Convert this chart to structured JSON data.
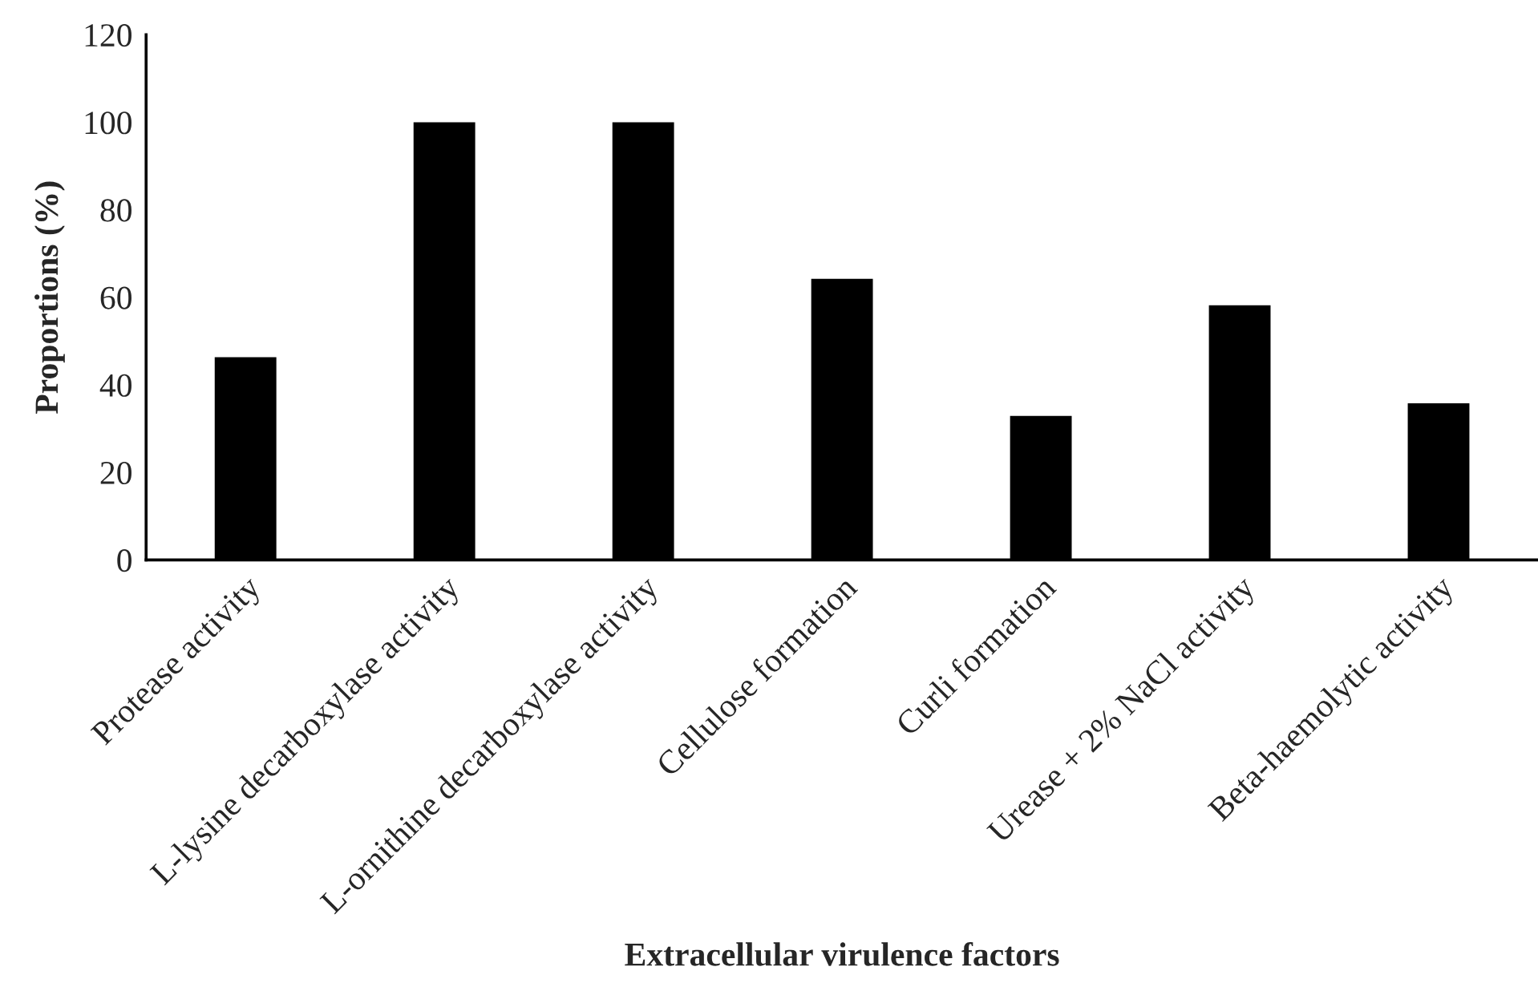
{
  "chart_data": {
    "type": "bar",
    "xlabel": "Extracellular virulence factors",
    "ylabel": "Proportions (%)",
    "categories": [
      "Protease activity",
      "L-lysine decarboxylase activity",
      "L-ornithine decarboxylase activity",
      "Cellulose formation",
      "Curli formation",
      "Urease + 2% NaCl activity",
      "Beta-haemolytic activity"
    ],
    "values": [
      46.3,
      100,
      100,
      64.2,
      32.9,
      58.2,
      35.8
    ],
    "color": "#000000",
    "ylim": [
      0,
      120
    ],
    "yticks": [
      0,
      20,
      40,
      60,
      80,
      100,
      120
    ],
    "grid": false
  }
}
